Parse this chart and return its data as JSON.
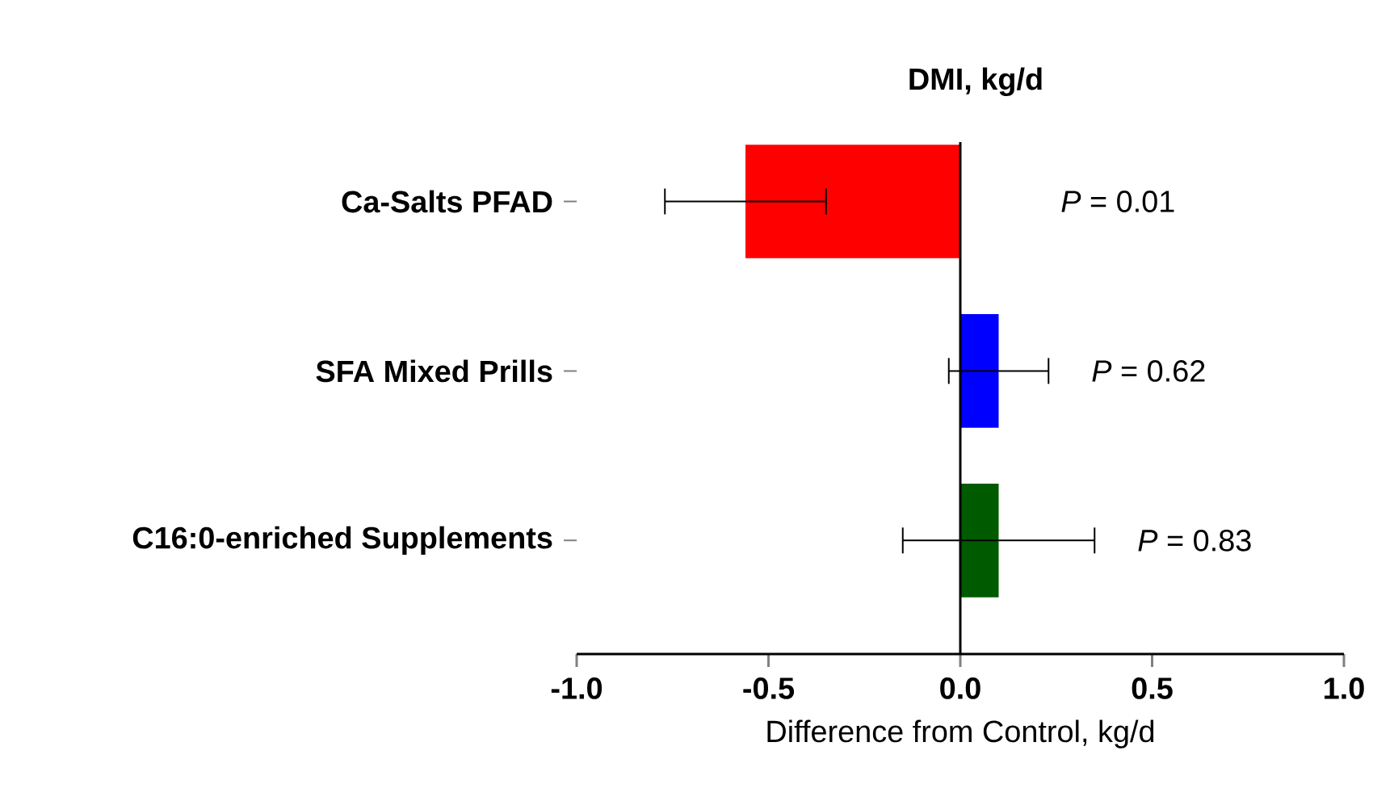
{
  "chart_data": {
    "type": "bar",
    "orientation": "horizontal",
    "title": "DMI, kg/d",
    "xlabel": "Difference from Control, kg/d",
    "categories": [
      "Ca-Salts PFAD",
      "SFA Mixed Prills",
      "C16:0-enriched Supplements"
    ],
    "values": [
      -0.56,
      0.1,
      0.1
    ],
    "colors": [
      "#ff0000",
      "#0000ff",
      "#005a00"
    ],
    "errors": [
      [
        -0.77,
        -0.35
      ],
      [
        -0.03,
        0.23
      ],
      [
        -0.15,
        0.35
      ]
    ],
    "xlim": [
      -1,
      1
    ],
    "xticks": [
      {
        "value": -1,
        "label": "-1.0"
      },
      {
        "value": -0.5,
        "label": "-0.5"
      },
      {
        "value": 0,
        "label": "0.0"
      },
      {
        "value": 0.5,
        "label": "0.5"
      },
      {
        "value": 1,
        "label": "1.0"
      }
    ],
    "ref_lines": [
      {
        "axis": "x",
        "value": 0
      }
    ],
    "annotations": [
      "*P* = 0.01",
      "*P* = 0.62",
      "*P* = 0.83"
    ],
    "grid": false
  }
}
